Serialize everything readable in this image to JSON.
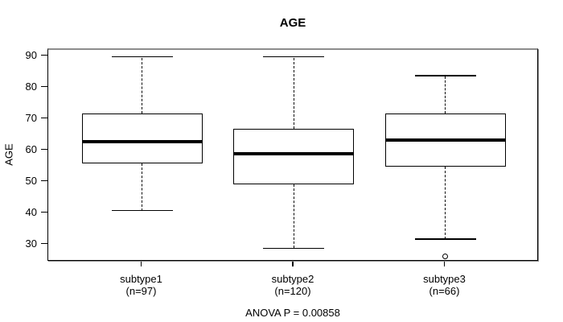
{
  "page": {
    "background": "#ffffff"
  },
  "chart_data": {
    "type": "box",
    "title": "AGE",
    "ylabel": "AGE",
    "xlabel": "",
    "yticks": [
      30,
      40,
      50,
      60,
      70,
      80,
      90
    ],
    "ylim": [
      24.5,
      92.2
    ],
    "grid": false,
    "legend": "none",
    "footnote": "ANOVA P = 0.00858",
    "colors": {
      "line": "#000000",
      "frame_shadow": "#8c8c8c",
      "background": "#ffffff"
    },
    "groups": [
      {
        "label": "subtype1",
        "sublabel": "(n=97)",
        "n": 97,
        "whisker_low": 41,
        "q1": 56,
        "median": 63,
        "q3": 72,
        "whisker_high": 90,
        "outliers": []
      },
      {
        "label": "subtype2",
        "sublabel": "(n=120)",
        "n": 120,
        "whisker_low": 29,
        "q1": 49.5,
        "median": 59,
        "q3": 67,
        "whisker_high": 90,
        "outliers": []
      },
      {
        "label": "subtype3",
        "sublabel": "(n=66)",
        "n": 66,
        "whisker_low": 32,
        "q1": 55,
        "median": 63.5,
        "q3": 72,
        "whisker_high": 84,
        "outliers": [
          26.5
        ]
      }
    ]
  }
}
